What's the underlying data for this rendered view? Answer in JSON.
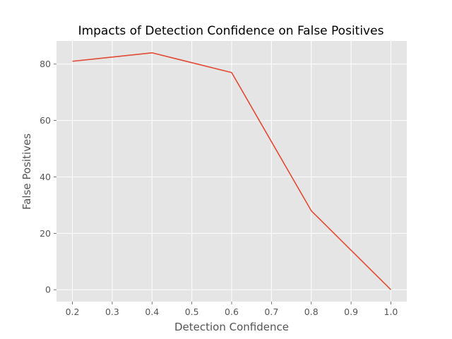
{
  "chart_data": {
    "type": "line",
    "title": "Impacts of Detection Confidence on False Positives",
    "xlabel": "Detection Confidence",
    "ylabel": "False Positives",
    "x": [
      0.2,
      0.4,
      0.6,
      0.8,
      1.0
    ],
    "series": [
      {
        "values": [
          81,
          84,
          77,
          28,
          0
        ]
      }
    ],
    "xlim": [
      0.16,
      1.04
    ],
    "ylim": [
      -4.2,
      88.2
    ],
    "xticks": [
      0.2,
      0.3,
      0.4,
      0.5,
      0.6,
      0.7,
      0.8,
      0.9,
      1.0
    ],
    "xtick_labels": [
      "0.2",
      "0.3",
      "0.4",
      "0.5",
      "0.6",
      "0.7",
      "0.8",
      "0.9",
      "1.0"
    ],
    "yticks": [
      0,
      20,
      40,
      60,
      80
    ],
    "ytick_labels": [
      "0",
      "20",
      "40",
      "60",
      "80"
    ],
    "grid": true,
    "colors": {
      "background": "#E5E5E5",
      "line": "#E24A33",
      "grid": "#FFFFFF"
    }
  }
}
